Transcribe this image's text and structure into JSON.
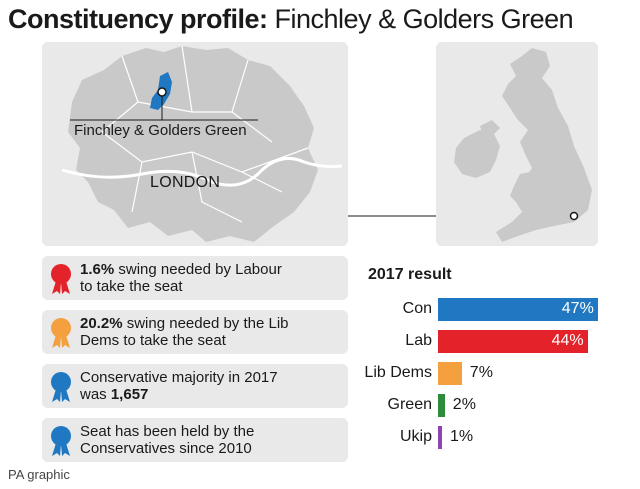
{
  "header": {
    "title_bold": "Constituency profile:",
    "title_rest": "Finchley & Golders Green"
  },
  "map": {
    "constituency_label": "Finchley & Golders Green",
    "city_label": "LONDON",
    "constituency_color": "#1f78c1",
    "land_color": "#c9c9c9",
    "panel_color": "#e9e9e9"
  },
  "facts": [
    {
      "bold": "1.6%",
      "text": " swing needed by Labour",
      "text2": "to take the seat",
      "color": "#e3222a"
    },
    {
      "bold": "20.2%",
      "text": " swing needed by the Lib",
      "text2": "Dems to take the seat",
      "color": "#f4a03e"
    },
    {
      "text_a": "Conservative majority in 2017",
      "text_b": "was ",
      "bold": "1,657",
      "color": "#1f78c1"
    },
    {
      "text_a": "Seat has been held by the",
      "text_b": "Conservatives since 2010",
      "color": "#1f78c1"
    }
  ],
  "chart_data": {
    "type": "bar",
    "title": "2017 result",
    "categories": [
      "Con",
      "Lab",
      "Lib Dems",
      "Green",
      "Ukip"
    ],
    "values": [
      47,
      44,
      7,
      2,
      1
    ],
    "value_labels": [
      "47%",
      "44%",
      "7%",
      "2%",
      "1%"
    ],
    "colors": [
      "#1f78c1",
      "#e3222a",
      "#f4a03e",
      "#2e8b3a",
      "#8e44ad"
    ],
    "xlim": [
      0,
      50
    ],
    "orientation": "horizontal",
    "grid": false
  },
  "footer": {
    "credit": "PA graphic"
  }
}
